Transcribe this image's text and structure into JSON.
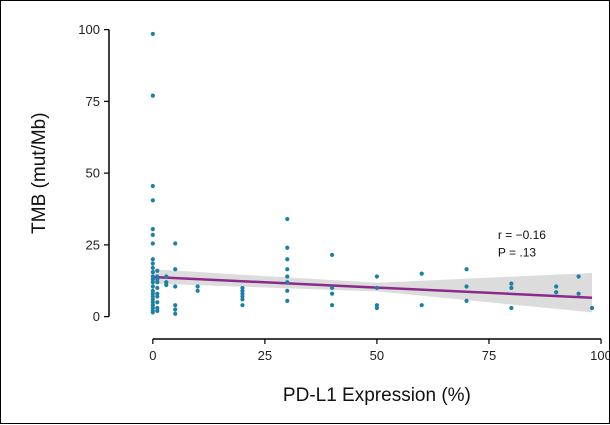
{
  "chart_data": {
    "type": "scatter",
    "title": "",
    "xlabel": "PD-L1 Expression (%)",
    "ylabel": "TMB (mut/Mb)",
    "xlim": [
      -10,
      100
    ],
    "ylim": [
      -5,
      103
    ],
    "xticks": [
      0,
      25,
      50,
      75,
      100
    ],
    "yticks": [
      0,
      25,
      50,
      75,
      100
    ],
    "grid": false,
    "point_color": "#1b7fa6",
    "line_color": "#8b2a8b",
    "band_color": "#dcdcdc",
    "annotations": [
      "r = −0.16",
      "P = .13"
    ],
    "points": [
      [
        0,
        98.5
      ],
      [
        0,
        77
      ],
      [
        0,
        45.5
      ],
      [
        0,
        40.5
      ],
      [
        0,
        30.5
      ],
      [
        0,
        28.5
      ],
      [
        0,
        25.5
      ],
      [
        0,
        20
      ],
      [
        0,
        18.5
      ],
      [
        0,
        17
      ],
      [
        0,
        15.5
      ],
      [
        0,
        14
      ],
      [
        0,
        13
      ],
      [
        0,
        12
      ],
      [
        0,
        10.5
      ],
      [
        0,
        9
      ],
      [
        0,
        8
      ],
      [
        0,
        7
      ],
      [
        0,
        6
      ],
      [
        0,
        5
      ],
      [
        0,
        4
      ],
      [
        0,
        3
      ],
      [
        0,
        2
      ],
      [
        0,
        1.5
      ],
      [
        1,
        16
      ],
      [
        1,
        14
      ],
      [
        1,
        13
      ],
      [
        1,
        12
      ],
      [
        1,
        10
      ],
      [
        1,
        8
      ],
      [
        1,
        7
      ],
      [
        1,
        5
      ],
      [
        1,
        3
      ],
      [
        1,
        2
      ],
      [
        3,
        14
      ],
      [
        3,
        12
      ],
      [
        3,
        11
      ],
      [
        5,
        25.5
      ],
      [
        5,
        16.5
      ],
      [
        5,
        10.5
      ],
      [
        5,
        4
      ],
      [
        5,
        2.5
      ],
      [
        5,
        1
      ],
      [
        10,
        10.5
      ],
      [
        10,
        9
      ],
      [
        20,
        10
      ],
      [
        20,
        9
      ],
      [
        20,
        8
      ],
      [
        20,
        7
      ],
      [
        20,
        6
      ],
      [
        20,
        4
      ],
      [
        30,
        34
      ],
      [
        30,
        24
      ],
      [
        30,
        20
      ],
      [
        30,
        16.5
      ],
      [
        30,
        14
      ],
      [
        30,
        12
      ],
      [
        30,
        9
      ],
      [
        30,
        5.5
      ],
      [
        40,
        21.5
      ],
      [
        40,
        10
      ],
      [
        40,
        8
      ],
      [
        40,
        4
      ],
      [
        50,
        14
      ],
      [
        50,
        10
      ],
      [
        50,
        4
      ],
      [
        50,
        3
      ],
      [
        60,
        15
      ],
      [
        60,
        4
      ],
      [
        70,
        16.5
      ],
      [
        70,
        10.5
      ],
      [
        70,
        5.5
      ],
      [
        80,
        11.5
      ],
      [
        80,
        10
      ],
      [
        80,
        3
      ],
      [
        90,
        10.5
      ],
      [
        90,
        8.5
      ],
      [
        95,
        14
      ],
      [
        95,
        8
      ],
      [
        98,
        3
      ]
    ],
    "regression": {
      "x": [
        0,
        98
      ],
      "y": [
        13.8,
        6.6
      ]
    },
    "confidence_band": {
      "x": [
        0,
        50,
        98
      ],
      "lower": [
        11.5,
        8.8,
        1.5
      ],
      "upper": [
        16.5,
        11.8,
        15.2
      ]
    }
  }
}
